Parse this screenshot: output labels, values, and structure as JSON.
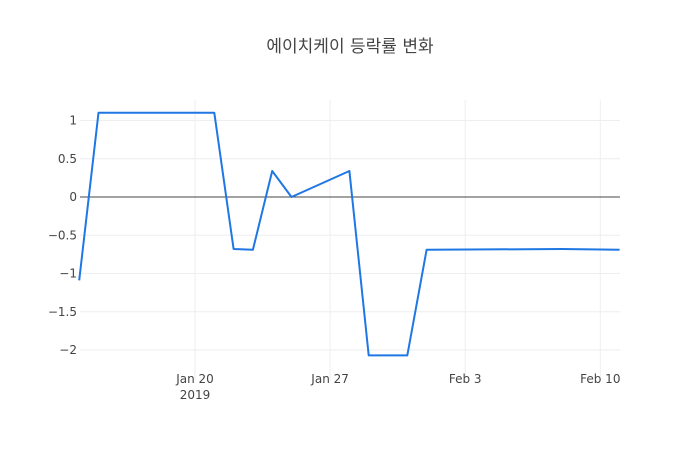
{
  "chart_data": {
    "type": "line",
    "title": "에이치케이 등락률 변화",
    "xlabel": "",
    "ylabel": "",
    "x": [
      "2019-01-14",
      "2019-01-15",
      "2019-01-21",
      "2019-01-22",
      "2019-01-23",
      "2019-01-24",
      "2019-01-25",
      "2019-01-28",
      "2019-01-29",
      "2019-01-31",
      "2019-02-01",
      "2019-02-08",
      "2019-02-11"
    ],
    "series": [
      {
        "name": "등락률",
        "color": "#1f77e4",
        "values": [
          -1.09,
          1.1,
          1.1,
          -0.68,
          -0.69,
          0.34,
          0.0,
          0.34,
          -2.07,
          -2.07,
          -0.69,
          -0.68,
          -0.69
        ]
      }
    ],
    "x_ticks": [
      {
        "date": "2019-01-20",
        "label": "Jan 20",
        "sublabel": "2019"
      },
      {
        "date": "2019-01-27",
        "label": "Jan 27",
        "sublabel": ""
      },
      {
        "date": "2019-02-03",
        "label": "Feb 3",
        "sublabel": ""
      },
      {
        "date": "2019-02-10",
        "label": "Feb 10",
        "sublabel": ""
      }
    ],
    "y_ticks": [
      1,
      0.5,
      0,
      -0.5,
      -1,
      -1.5,
      -2
    ],
    "y_tick_labels": [
      "1",
      "0.5",
      "0",
      "−0.5",
      "−1",
      "−1.5",
      "−2"
    ],
    "ylim": [
      -2.2,
      1.25
    ],
    "xlim": [
      "2019-01-14",
      "2019-02-11"
    ],
    "grid": true,
    "legend": "none"
  }
}
